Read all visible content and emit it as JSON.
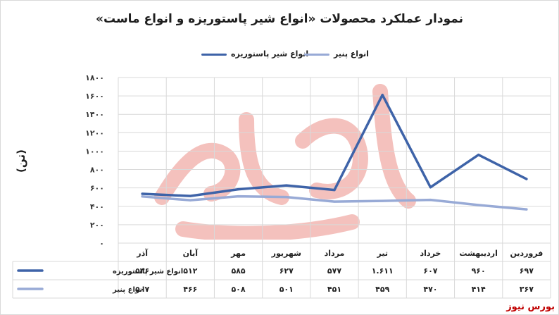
{
  "colors": {
    "series_dark": "#3e63a8",
    "series_light": "#98aad6",
    "grid": "#d9d9d9",
    "brand": "#c00000",
    "watermark": "#e8786f"
  },
  "brand_label": "بورس نیوز",
  "chart_data": {
    "type": "line",
    "title": "نمودار عملکرد محصولات «انواع شیر پاستوریزه و انواع ماست»",
    "ylabel": "(تن)",
    "xlabel": "",
    "ylim": [
      0,
      1800
    ],
    "yticks": [
      "۰",
      "۲۰۰",
      "۴۰۰",
      "۶۰۰",
      "۸۰۰",
      "۱۰۰۰",
      "۱۲۰۰",
      "۱۴۰۰",
      "۱۶۰۰",
      "۱۸۰۰"
    ],
    "ytick_values": [
      0,
      200,
      400,
      600,
      800,
      1000,
      1200,
      1400,
      1600,
      1800
    ],
    "grid": true,
    "legend_position": "top",
    "x_direction": "right-to-left",
    "categories": [
      "فروردین",
      "اردیبهشت",
      "خرداد",
      "تیر",
      "مرداد",
      "شهریور",
      "مهر",
      "آبان",
      "آذر"
    ],
    "series": [
      {
        "name": "انواع شیر پاستوریزه",
        "color": "#3e63a8",
        "values": [
          697,
          960,
          607,
          1611,
          577,
          627,
          585,
          512,
          536
        ],
        "labels": [
          "۶۹۷",
          "۹۶۰",
          "۶۰۷",
          "۱.۶۱۱",
          "۵۷۷",
          "۶۲۷",
          "۵۸۵",
          "۵۱۲",
          "۵۳۶"
        ]
      },
      {
        "name": "انواع پنیر",
        "color": "#98aad6",
        "values": [
          367,
          414,
          470,
          459,
          451,
          501,
          508,
          466,
          507
        ],
        "labels": [
          "۳۶۷",
          "۴۱۴",
          "۴۷۰",
          "۴۵۹",
          "۴۵۱",
          "۵۰۱",
          "۵۰۸",
          "۴۶۶",
          "۵۰۷"
        ]
      }
    ]
  }
}
